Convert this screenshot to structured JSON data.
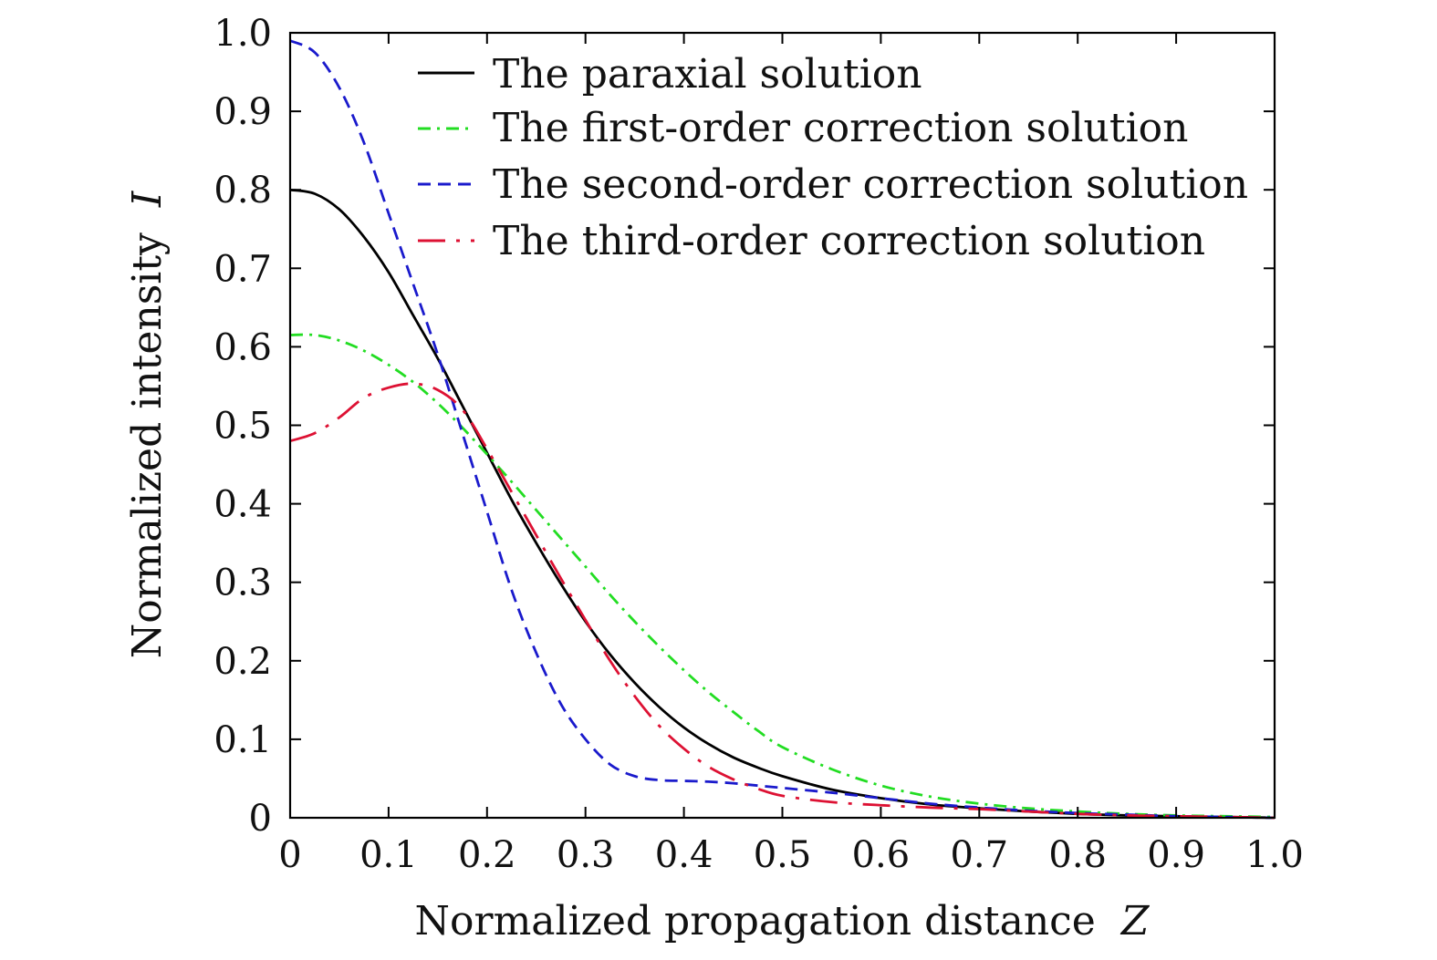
{
  "chart_data": {
    "type": "line",
    "xlabel": "Normalized propagation distance",
    "xlabel_var": "Z",
    "ylabel": "Normalized intensity",
    "ylabel_var": "I",
    "xlim": [
      0,
      1.0
    ],
    "ylim": [
      0,
      1.0
    ],
    "x_ticks": [
      "0",
      "0.1",
      "0.2",
      "0.3",
      "0.4",
      "0.5",
      "0.6",
      "0.7",
      "0.8",
      "0.9",
      "1.0"
    ],
    "y_ticks": [
      "0",
      "0.1",
      "0.2",
      "0.3",
      "0.4",
      "0.5",
      "0.6",
      "0.7",
      "0.8",
      "0.9",
      "1.0"
    ],
    "grid": false,
    "legend_position": "top-right",
    "x": [
      0,
      0.025,
      0.05,
      0.075,
      0.1,
      0.125,
      0.15,
      0.175,
      0.2,
      0.225,
      0.25,
      0.275,
      0.3,
      0.325,
      0.35,
      0.375,
      0.4,
      0.425,
      0.45,
      0.475,
      0.5,
      0.55,
      0.6,
      0.65,
      0.7,
      0.75,
      0.8,
      0.85,
      0.9,
      0.95,
      1.0
    ],
    "series": [
      {
        "name": "The paraxial solution",
        "color": "#000000",
        "dash": "solid",
        "values": [
          0.8,
          0.795,
          0.775,
          0.74,
          0.695,
          0.64,
          0.585,
          0.525,
          0.465,
          0.405,
          0.35,
          0.298,
          0.25,
          0.208,
          0.172,
          0.141,
          0.115,
          0.094,
          0.077,
          0.064,
          0.053,
          0.036,
          0.025,
          0.017,
          0.012,
          0.008,
          0.005,
          0.003,
          0.002,
          0.001,
          0.0
        ]
      },
      {
        "name": "The first-order correction solution",
        "color": "#22dd22",
        "dash": "dash-dot",
        "values": [
          0.615,
          0.615,
          0.608,
          0.595,
          0.577,
          0.555,
          0.528,
          0.497,
          0.463,
          0.428,
          0.392,
          0.356,
          0.32,
          0.284,
          0.25,
          0.218,
          0.188,
          0.16,
          0.135,
          0.111,
          0.09,
          0.062,
          0.041,
          0.027,
          0.018,
          0.012,
          0.008,
          0.005,
          0.003,
          0.002,
          0.001
        ]
      },
      {
        "name": "The second-order correction solution",
        "color": "#1a1acc",
        "dash": "dash",
        "values": [
          0.99,
          0.975,
          0.93,
          0.86,
          0.77,
          0.68,
          0.59,
          0.49,
          0.39,
          0.29,
          0.21,
          0.145,
          0.1,
          0.068,
          0.053,
          0.048,
          0.047,
          0.046,
          0.044,
          0.041,
          0.038,
          0.032,
          0.025,
          0.018,
          0.013,
          0.009,
          0.006,
          0.004,
          0.002,
          0.001,
          0.0
        ]
      },
      {
        "name": "The third-order correction solution",
        "color": "#dd1133",
        "dash": "long-dash-dot",
        "values": [
          0.48,
          0.49,
          0.51,
          0.535,
          0.548,
          0.553,
          0.545,
          0.52,
          0.47,
          0.415,
          0.36,
          0.305,
          0.252,
          0.2,
          0.155,
          0.117,
          0.088,
          0.065,
          0.049,
          0.037,
          0.028,
          0.02,
          0.016,
          0.013,
          0.011,
          0.008,
          0.005,
          0.003,
          0.002,
          0.001,
          0.0
        ]
      }
    ]
  }
}
